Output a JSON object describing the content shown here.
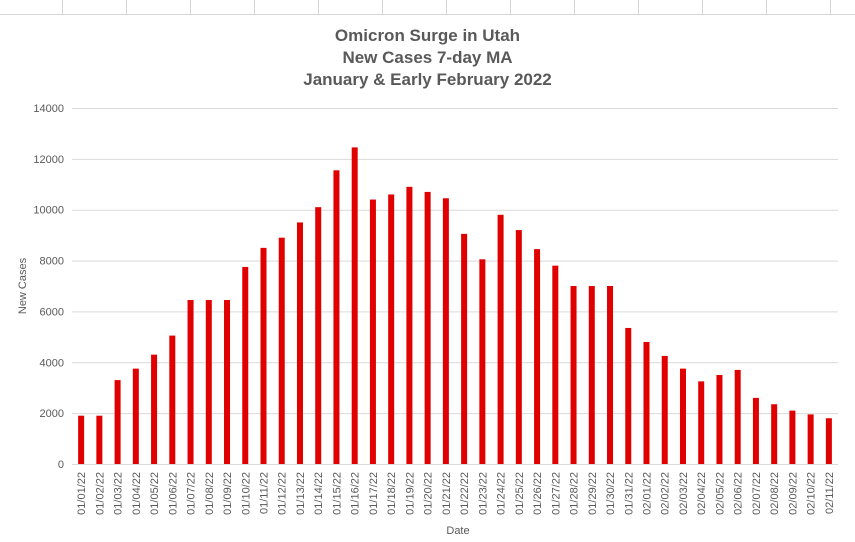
{
  "chart_data": {
    "type": "bar",
    "title": [
      "Omicron Surge in Utah",
      "New Cases 7-day MA",
      "January & Early February 2022"
    ],
    "xlabel": "Date",
    "ylabel": "New Cases",
    "ylim": [
      0,
      14000
    ],
    "yticks": [
      "0",
      "2000",
      "4000",
      "6000",
      "8000",
      "10000",
      "12000",
      "14000"
    ],
    "grid": true,
    "legend": "none",
    "color": "#e00000",
    "categories": [
      "01/01/22",
      "01/02/22",
      "01/03/22",
      "01/04/22",
      "01/05/22",
      "01/06/22",
      "01/07/22",
      "01/08/22",
      "01/09/22",
      "01/10/22",
      "01/11/22",
      "01/12/22",
      "01/13/22",
      "01/14/22",
      "01/15/22",
      "01/16/22",
      "01/17/22",
      "01/18/22",
      "01/19/22",
      "01/20/22",
      "01/21/22",
      "01/22/22",
      "01/23/22",
      "01/24/22",
      "01/25/22",
      "01/26/22",
      "01/27/22",
      "01/28/22",
      "01/29/22",
      "01/30/22",
      "01/31/22",
      "02/01/22",
      "02/02/22",
      "02/03/22",
      "02/04/22",
      "02/05/22",
      "02/06/22",
      "02/07/22",
      "02/08/22",
      "02/09/22",
      "02/10/22",
      "02/11/22"
    ],
    "values": [
      1900,
      1900,
      3300,
      3750,
      4300,
      5050,
      6450,
      6450,
      6450,
      7750,
      8500,
      8900,
      9500,
      10100,
      11550,
      12450,
      10400,
      10600,
      10900,
      10700,
      10450,
      9050,
      8050,
      9800,
      9200,
      8450,
      7800,
      7000,
      7000,
      7000,
      5350,
      4800,
      4250,
      3750,
      3250,
      3500,
      3700,
      2600,
      2350,
      2100,
      1950,
      1800
    ]
  }
}
